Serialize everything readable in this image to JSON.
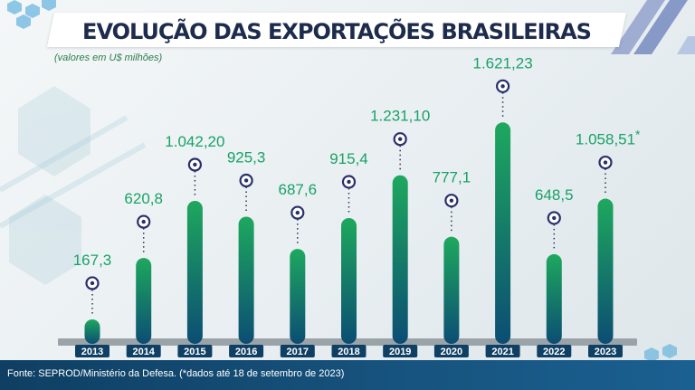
{
  "title": "EVOLUÇÃO DAS EXPORTAÇÕES BRASILEIRAS",
  "subtitle": "(valores em U$ milhões)",
  "source": "Fonte: SEPROD/Ministério da Defesa. (*dados até 18 de setembro de 2023)",
  "colors": {
    "bar_top": "#1ea85e",
    "bar_bottom": "#0c4d73",
    "value_label": "#19a266",
    "year_tag": "#0f3f63",
    "title_text": "#1d2b4c"
  },
  "chart_data": {
    "type": "bar",
    "title": "EVOLUÇÃO DAS EXPORTAÇÕES BRASILEIRAS",
    "subtitle": "(valores em U$ milhões)",
    "categories": [
      "2013",
      "2014",
      "2015",
      "2016",
      "2017",
      "2018",
      "2019",
      "2020",
      "2021",
      "2022",
      "2023"
    ],
    "values": [
      167.3,
      620.8,
      1042.2,
      925.3,
      687.6,
      915.4,
      1231.1,
      777.1,
      1621.23,
      648.5,
      1058.51
    ],
    "value_labels": [
      "167,3",
      "620,8",
      "1.042,20",
      "925,3",
      "687,6",
      "915,4",
      "1.231,10",
      "777,1",
      "1.621,23",
      "648,5",
      "1.058,51"
    ],
    "annotations": [
      {
        "category": "2023",
        "text": "*"
      }
    ],
    "xlabel": "",
    "ylabel": "",
    "grid": false,
    "legend": "none"
  }
}
